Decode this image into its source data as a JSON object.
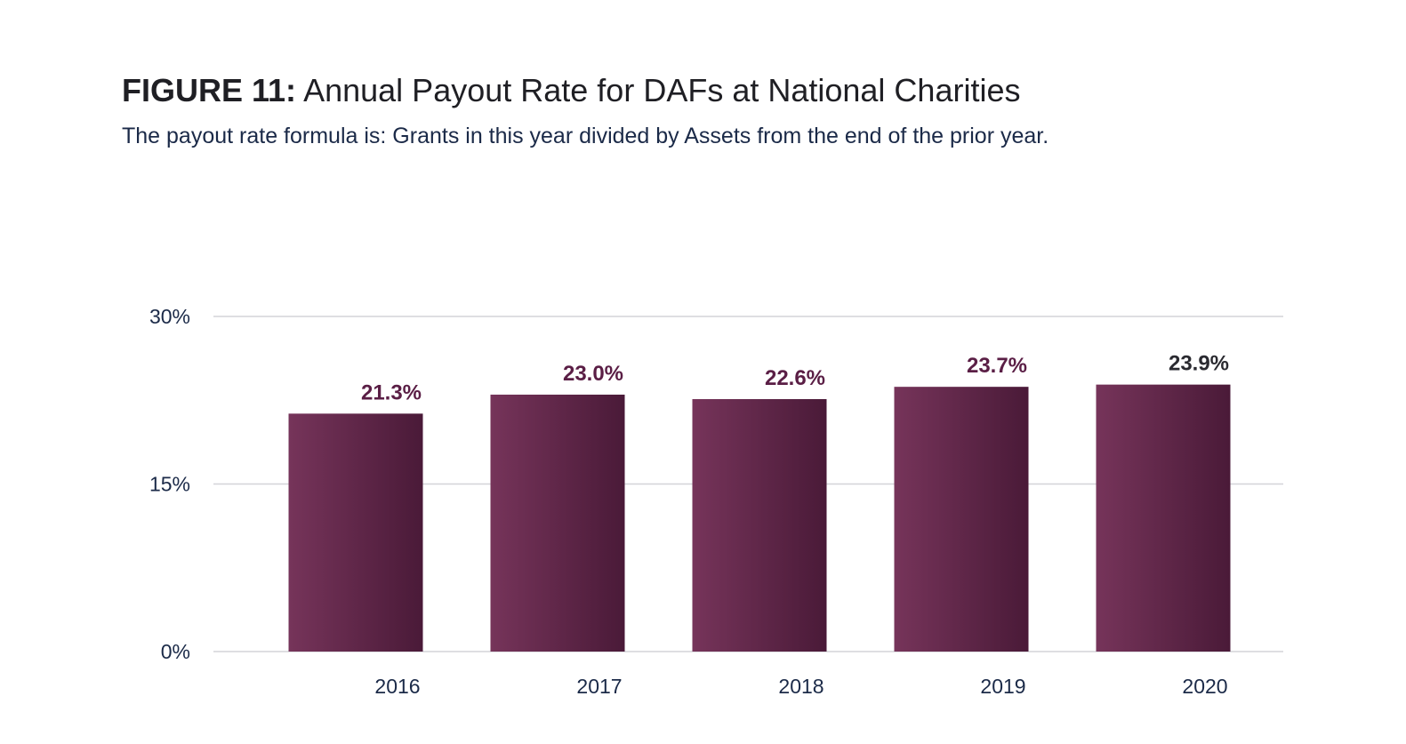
{
  "figure": {
    "label": "FIGURE 11:",
    "title": "Annual Payout Rate for DAFs at National Charities",
    "subtitle": "The payout rate formula is: Grants in this year divided by Assets from the end of the prior year."
  },
  "chart_data": {
    "type": "bar",
    "categories": [
      "2016",
      "2017",
      "2018",
      "2019",
      "2020"
    ],
    "values": [
      21.3,
      23.0,
      22.6,
      23.7,
      23.9
    ],
    "data_labels": [
      "21.3%",
      "23.0%",
      "22.6%",
      "23.7%",
      "23.9%"
    ],
    "ylim": [
      0,
      30
    ],
    "yticks": [
      0,
      15,
      30
    ],
    "ytick_labels": [
      "0%",
      "15%",
      "30%"
    ],
    "grid": true,
    "legend": "none",
    "colors": {
      "bar_light": "#76345a",
      "bar_dark": "#4a1a38",
      "label": "#5a1e45",
      "label_last": "#2a2a30",
      "grid": "#d4d4d8",
      "tick": "#1b2a48"
    }
  }
}
